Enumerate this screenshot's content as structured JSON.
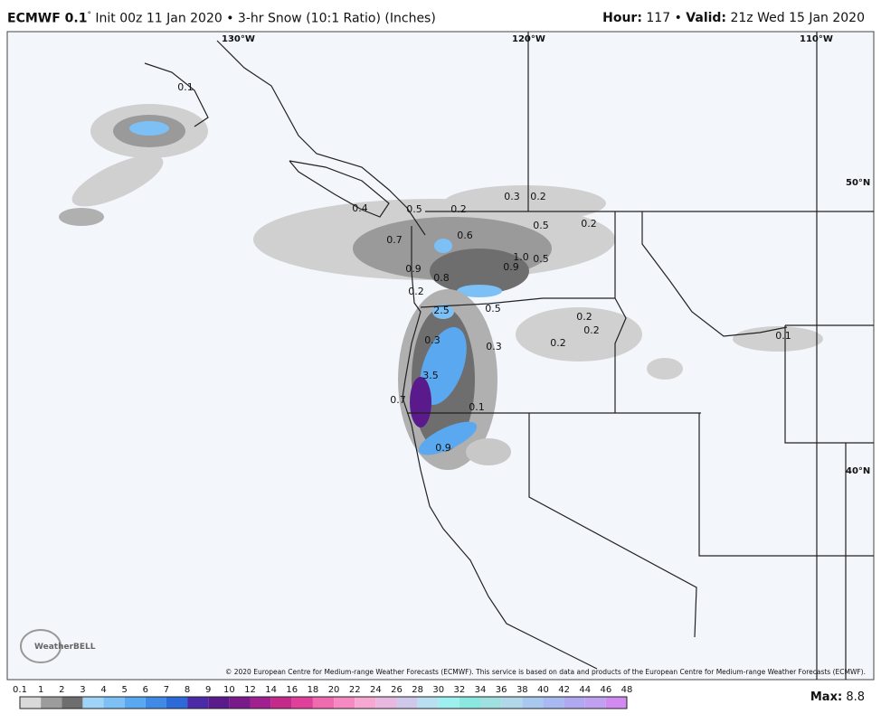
{
  "header": {
    "model": "ECMWF 0.1",
    "model_mark": "°",
    "description": "Init 00z 11 Jan 2020 • 3-hr Snow (10:1 Ratio) (Inches)",
    "hour_label": "Hour:",
    "hour": "117",
    "separator": "•",
    "valid_label": "Valid:",
    "valid": "21z Wed 15 Jan 2020"
  },
  "map": {
    "longitudes": [
      "130°W",
      "120°W",
      "110°W"
    ],
    "latitudes": [
      "50°N",
      "40°N"
    ],
    "labels": [
      "0.1",
      "0.3",
      "0.2",
      "0.4",
      "0.5",
      "0.2",
      "0.5",
      "0.2",
      "0.6",
      "0.7",
      "1.0",
      "0.9",
      "0.5",
      "0.9",
      "0.8",
      "0.2",
      "2.5",
      "0.5",
      "0.2",
      "0.2",
      "0.2",
      "0.3",
      "0.3",
      "3.5",
      "0.7",
      "0.1",
      "0.9",
      "0.1"
    ],
    "logo": "WeatherBELL",
    "copyright": "© 2020 European Centre for Medium-range Weather Forecasts (ECMWF). This service is based on data and products of the European Centre for Medium-range Weather Forecasts (ECMWF)."
  },
  "legend": {
    "ticks": [
      "0.1",
      "1",
      "2",
      "3",
      "4",
      "5",
      "6",
      "7",
      "8",
      "9",
      "10",
      "12",
      "14",
      "16",
      "18",
      "20",
      "22",
      "24",
      "26",
      "28",
      "30",
      "32",
      "34",
      "36",
      "38",
      "40",
      "42",
      "44",
      "46",
      "48"
    ],
    "colors": [
      "#d9d9d9",
      "#9c9c9c",
      "#6e6e6e",
      "#9fd3f7",
      "#7cc0f5",
      "#5aa8ef",
      "#3f8ae6",
      "#2c6ad9",
      "#4b2aa8",
      "#5a1a8c",
      "#7a1a8a",
      "#a0208f",
      "#c42a8a",
      "#e0409a",
      "#f06ab0",
      "#f58ac2",
      "#f7a8d2",
      "#e8b8e0",
      "#d0c8ea",
      "#b8e0f0",
      "#9ef0f0",
      "#8ae8e0",
      "#a0e0e0",
      "#b0d8e8",
      "#a8c8f0",
      "#a8b8f0",
      "#b0a8f0",
      "#c0a0f0",
      "#d08af0"
    ],
    "max_label": "Max:",
    "max": "8.8"
  }
}
